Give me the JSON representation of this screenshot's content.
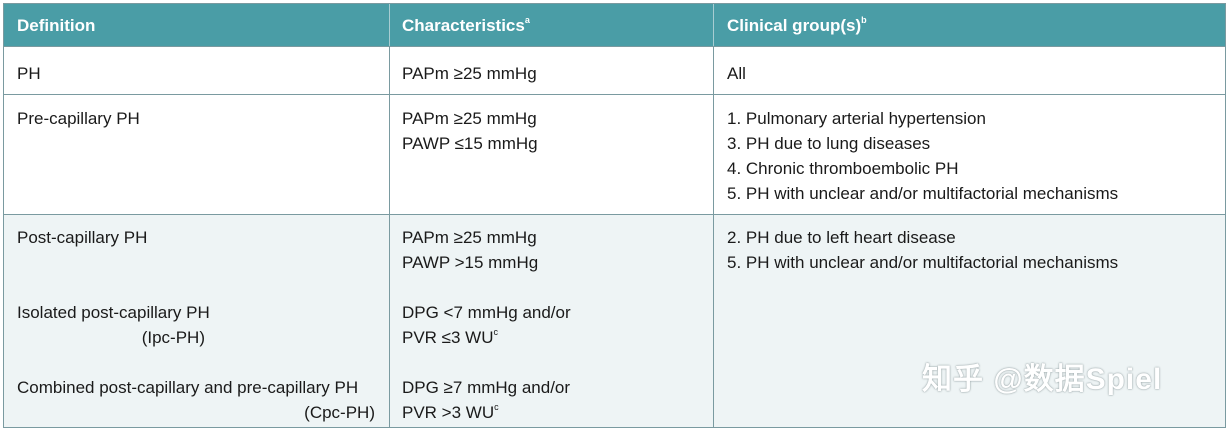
{
  "header": {
    "col1": "Definition",
    "col2": "Characteristics",
    "col2_sup": "a",
    "col3": "Clinical group(s)",
    "col3_sup": "b"
  },
  "rows": [
    {
      "definition": "PH",
      "characteristics": [
        "PAPm ≥25 mmHg"
      ],
      "groups": [
        "All"
      ]
    },
    {
      "definition": "Pre-capillary PH",
      "characteristics": [
        "PAPm ≥25 mmHg",
        "PAWP ≤15 mmHg"
      ],
      "groups": [
        "1. Pulmonary arterial hypertension",
        "3. PH due to lung diseases",
        "4. Chronic thromboembolic PH",
        "5. PH with unclear and/or multifactorial mechanisms"
      ]
    },
    {
      "definition": "Post-capillary PH",
      "characteristics": [
        "PAPm ≥25 mmHg",
        "PAWP >15 mmHg"
      ],
      "groups": [
        "2. PH due to left heart disease",
        "5. PH with unclear and/or multifactorial mechanisms"
      ],
      "sub": [
        {
          "definition_line1": "Isolated post-capillary PH",
          "definition_line2": "(Ipc-PH)",
          "char_line1": "DPG <7 mmHg and/or",
          "char_line2": "PVR ≤3 WU",
          "char_sup": "c"
        },
        {
          "definition_line1": "Combined post-capillary and pre-capillary PH",
          "definition_line2": "(Cpc-PH)",
          "char_line1": "DPG ≥7 mmHg and/or",
          "char_line2": "PVR >3 WU",
          "char_sup": "c"
        }
      ]
    }
  ],
  "watermark": "知乎 @数据Spiel",
  "colors": {
    "header_bg": "#4a9da6",
    "shaded_row": "#eef4f5",
    "border": "#7a9aa0"
  }
}
